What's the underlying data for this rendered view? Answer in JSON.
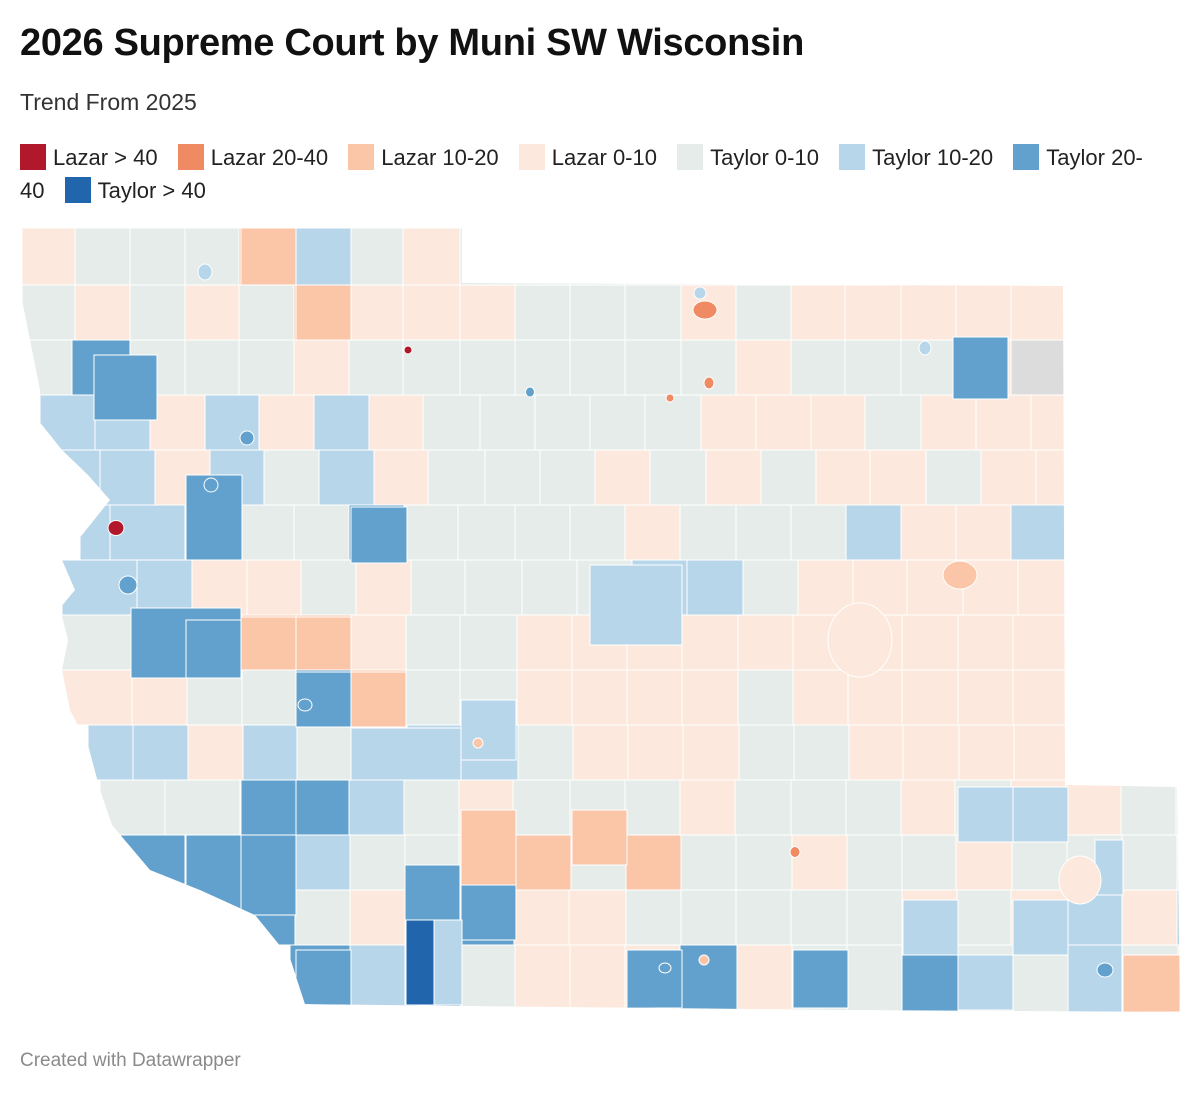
{
  "title": "2026 Supreme Court by Muni SW Wisconsin",
  "subtitle": "Trend From 2025",
  "legend": [
    {
      "label": "Lazar > 40",
      "color": "#b2182b"
    },
    {
      "label": "Lazar 20-40",
      "color": "#ef8a62"
    },
    {
      "label": "Lazar 10-20",
      "color": "#fbc5a8"
    },
    {
      "label": "Lazar 0-10",
      "color": "#fce8dc"
    },
    {
      "label": "Taylor 0-10",
      "color": "#e6ecea"
    },
    {
      "label": "Taylor 10-20",
      "color": "#b7d6ea"
    },
    {
      "label": "Taylor 20-40",
      "color": "#62a1cd"
    },
    {
      "label": "Taylor > 40",
      "color": "#2166ac"
    }
  ],
  "no_data_color": "#dcdcdc",
  "footer": "Created with Datawrapper"
}
